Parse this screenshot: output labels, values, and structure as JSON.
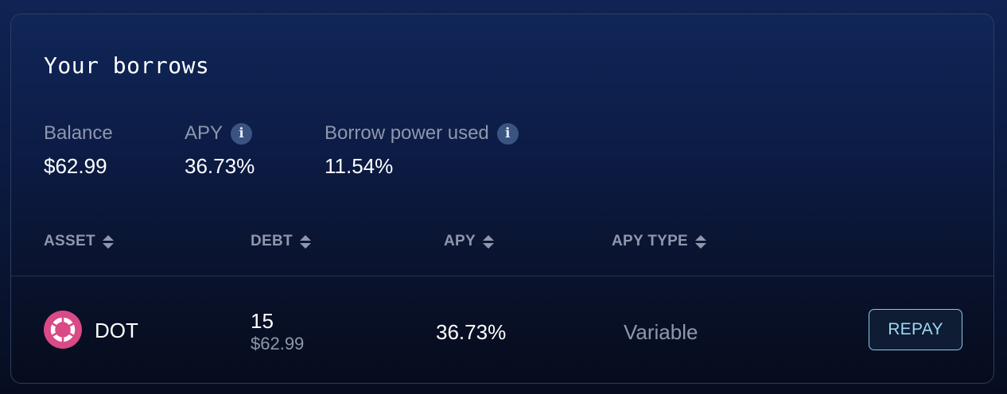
{
  "card": {
    "title": "Your borrows"
  },
  "summary": {
    "balance": {
      "label": "Balance",
      "value": "$62.99"
    },
    "apy": {
      "label": "APY",
      "value": "36.73%",
      "info_icon": "info-icon"
    },
    "borrow_power": {
      "label": "Borrow power used",
      "value": "11.54%",
      "info_icon": "info-icon"
    }
  },
  "table": {
    "columns": [
      {
        "label": "ASSET",
        "sort_icon": "sort-icon"
      },
      {
        "label": "DEBT",
        "sort_icon": "sort-icon"
      },
      {
        "label": "APY",
        "sort_icon": "sort-icon"
      },
      {
        "label": "APY TYPE",
        "sort_icon": "sort-icon"
      }
    ],
    "rows": [
      {
        "asset": "DOT",
        "asset_icon": "polkadot-icon",
        "debt_amount": "15",
        "debt_usd": "$62.99",
        "apy": "36.73%",
        "apy_type": "Variable",
        "action_label": "REPAY"
      }
    ]
  },
  "colors": {
    "accent": "#9fd6f5",
    "muted_text": "#8e97ac",
    "dot_brand": "#e6007a"
  }
}
